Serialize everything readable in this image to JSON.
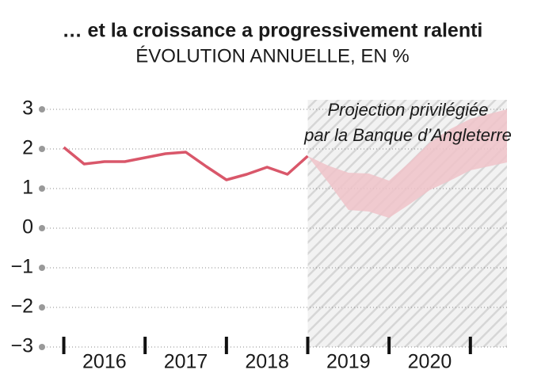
{
  "chart_data": {
    "type": "line",
    "title": "… et la croissance a progressivement ralenti",
    "subtitle": "ÉVOLUTION ANNUELLE, EN %",
    "annotation": [
      "Projection privilégiée",
      "par la Banque d’Angleterre"
    ],
    "x": [
      2016,
      2016.25,
      2016.5,
      2016.75,
      2017,
      2017.25,
      2017.5,
      2017.75,
      2018,
      2018.25,
      2018.5,
      2018.75,
      2019
    ],
    "values": [
      2.04,
      1.62,
      1.68,
      1.68,
      1.78,
      1.88,
      1.92,
      1.56,
      1.22,
      1.36,
      1.54,
      1.36,
      1.82
    ],
    "color": "#d9576a",
    "band": {
      "x": [
        2019,
        2019.25,
        2019.5,
        2019.75,
        2020,
        2020.25,
        2020.5,
        2020.75,
        2021,
        2021.45
      ],
      "upper": [
        1.82,
        1.58,
        1.4,
        1.38,
        1.2,
        1.66,
        2.16,
        2.5,
        2.76,
        3.0
      ],
      "lower": [
        1.82,
        1.16,
        0.46,
        0.42,
        0.26,
        0.6,
        0.96,
        1.2,
        1.46,
        1.66
      ],
      "color": "#f0c3c9"
    },
    "projection_start": 2019,
    "xlim": [
      2015.8,
      2021.45
    ],
    "xticks": [
      2016,
      2017,
      2018,
      2019,
      2020,
      2021
    ],
    "year_labels": [
      "2016",
      "2017",
      "2018",
      "2019",
      "2020"
    ],
    "ylim": [
      -3,
      3
    ],
    "yticks": [
      {
        "value": -3,
        "label": "−3"
      },
      {
        "value": -2,
        "label": "−2"
      },
      {
        "value": -1,
        "label": "−1"
      },
      0,
      1,
      2,
      3
    ],
    "grid": true
  }
}
